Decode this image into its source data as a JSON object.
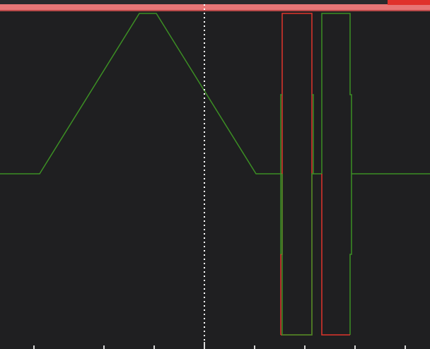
{
  "colors": {
    "background": "#1f1f21",
    "timeline_bar": "#e77676",
    "timeline_border": "#b94a4a",
    "range_marker": "#e0322c",
    "trace_green": "#3c8f24",
    "trace_red": "#e0352c",
    "cursor": "#ffffff",
    "ruler_tick": "#d8d8d8"
  },
  "icons": {
    "playhead": "dotted-vertical-cursor-icon"
  }
}
